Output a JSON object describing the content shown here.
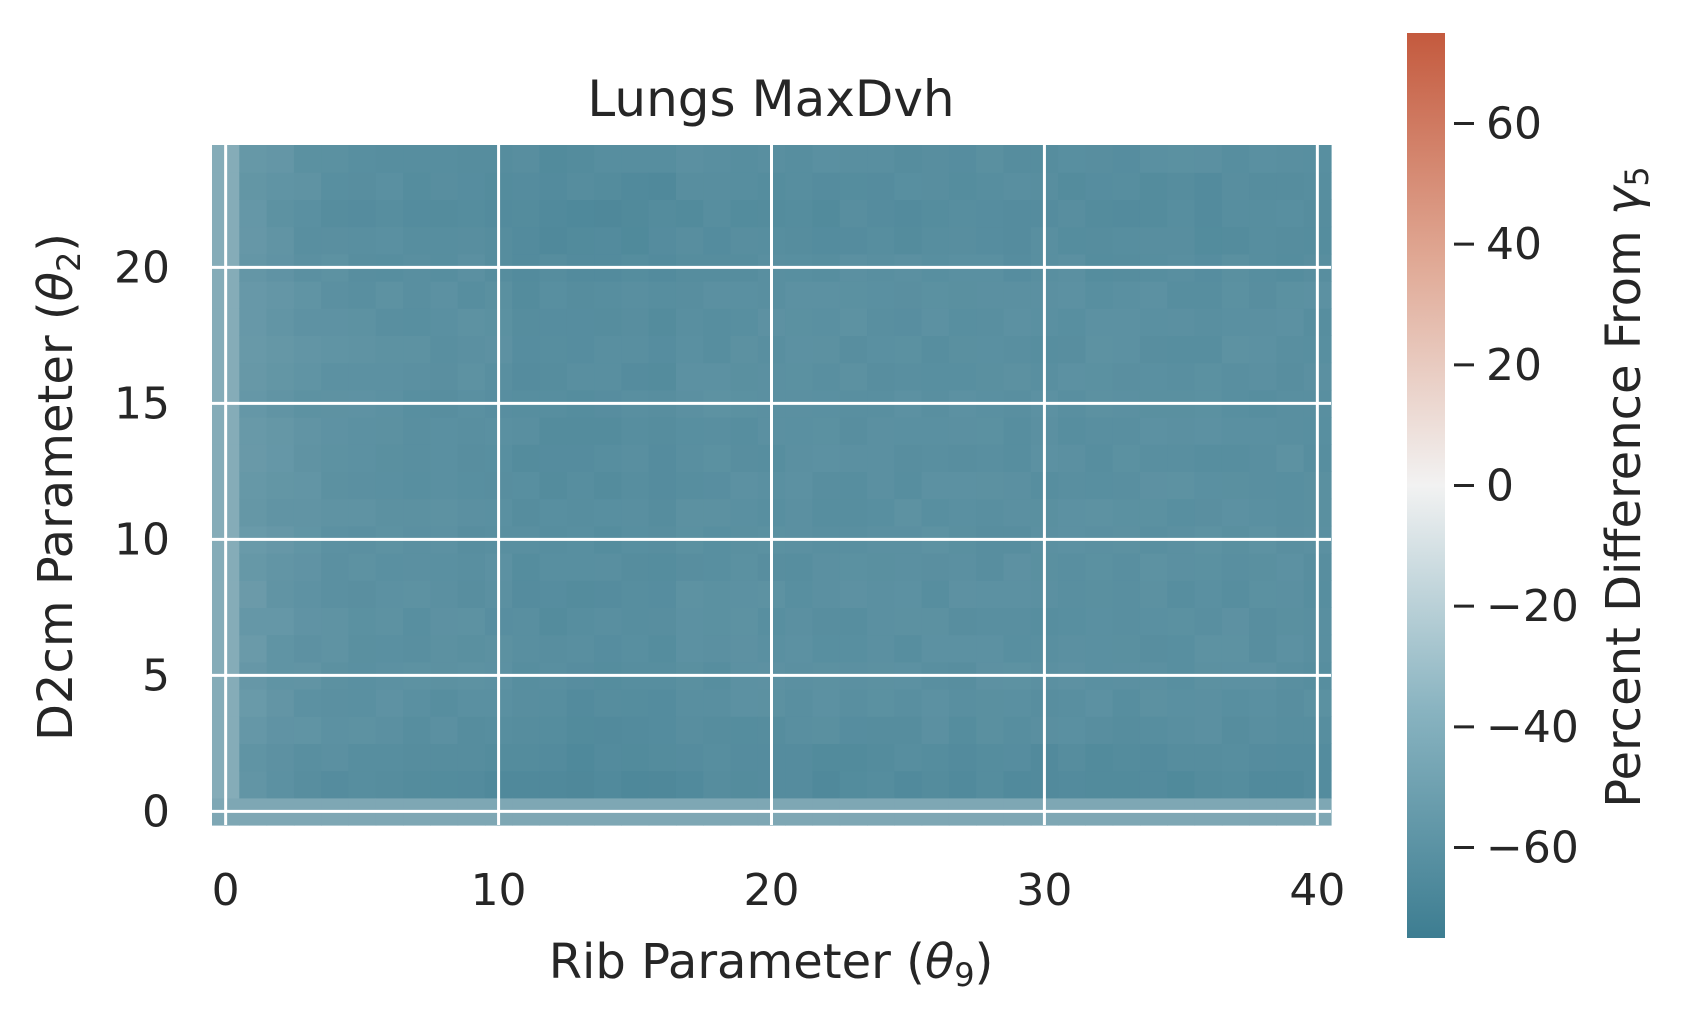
{
  "chart_data": {
    "type": "heatmap",
    "title": "Lungs MaxDvh",
    "xlabel": {
      "main": "Rib Parameter (",
      "symbol": "θ",
      "sub": "9",
      "tail": ")"
    },
    "ylabel": {
      "main": "D2cm Parameter (",
      "symbol": "θ",
      "sub": "2",
      "tail": ")"
    },
    "colorbar_label": {
      "main": "Percent Difference From ",
      "symbol": "γ",
      "sub": "5"
    },
    "xlim": [
      -0.5,
      40.5
    ],
    "ylim": [
      -0.5,
      24.5
    ],
    "x_ticks": [
      0,
      10,
      20,
      30,
      40
    ],
    "x_tick_labels": [
      "0",
      "10",
      "20",
      "30",
      "40"
    ],
    "y_ticks": [
      0,
      5,
      10,
      15,
      20
    ],
    "y_tick_labels": [
      "0",
      "5",
      "10",
      "15",
      "20"
    ],
    "colorbar_range": [
      -75,
      75
    ],
    "colorbar_ticks": [
      60,
      40,
      20,
      0,
      -20,
      -40,
      -60
    ],
    "colorbar_tick_labels": [
      "60",
      "40",
      "20",
      "0",
      "−20",
      "−40",
      "−60"
    ],
    "colormap": {
      "low": "#3d7d91",
      "mid": "#f2f2f2",
      "high": "#c45a3e"
    },
    "grid": true,
    "grid_color": "#ffffff",
    "grid_note": "x and y each range over integer values; cell values are percent differences",
    "model": {
      "x_values": "integers 0..40",
      "y_values": "integers 0..24",
      "row0_value": -48,
      "col0_value": -45,
      "approx_interior_range": [
        -72,
        -58
      ]
    }
  }
}
